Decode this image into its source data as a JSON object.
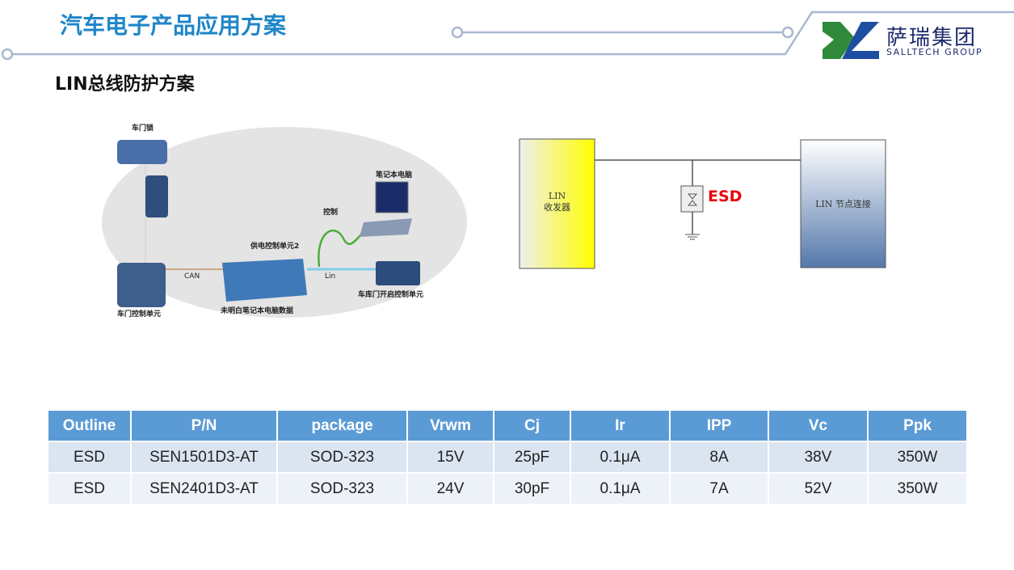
{
  "header": {
    "title": "汽车电子产品应用方案",
    "logo_cn": "萨瑞集团",
    "logo_en": "SALLTECH GROUP"
  },
  "subtitle": "LIN总线防护方案",
  "left_diagram": {
    "labels": {
      "door_lock": "车门锁",
      "laptop": "笔记本电脑",
      "control": "控制",
      "power_unit": "供电控制单元2",
      "can": "CAN",
      "lin": "Lin",
      "door_unit": "车门控制单元",
      "notebook_data": "未明白笔记本电脑数据",
      "garage_unit": "车库门开启控制单元"
    }
  },
  "right_diagram": {
    "transceiver_line1": "LIN",
    "transceiver_line2": "收发器",
    "esd": "ESD",
    "node": "LIN 节点连接",
    "esd_color": "#e8000b"
  },
  "table": {
    "headers": [
      "Outline",
      "P/N",
      "package",
      "Vrwm",
      "Cj",
      "Ir",
      "IPP",
      "Vc",
      "Ppk"
    ],
    "rows": [
      [
        "ESD",
        "SEN1501D3-AT",
        "SOD-323",
        "15V",
        "25pF",
        "0.1μA",
        "8A",
        "38V",
        "350W"
      ],
      [
        "ESD",
        "SEN2401D3-AT",
        "SOD-323",
        "24V",
        "30pF",
        "0.1μA",
        "7A",
        "52V",
        "350W"
      ]
    ]
  },
  "colors": {
    "title": "#1f86c8",
    "table_header": "#5b9bd5"
  }
}
